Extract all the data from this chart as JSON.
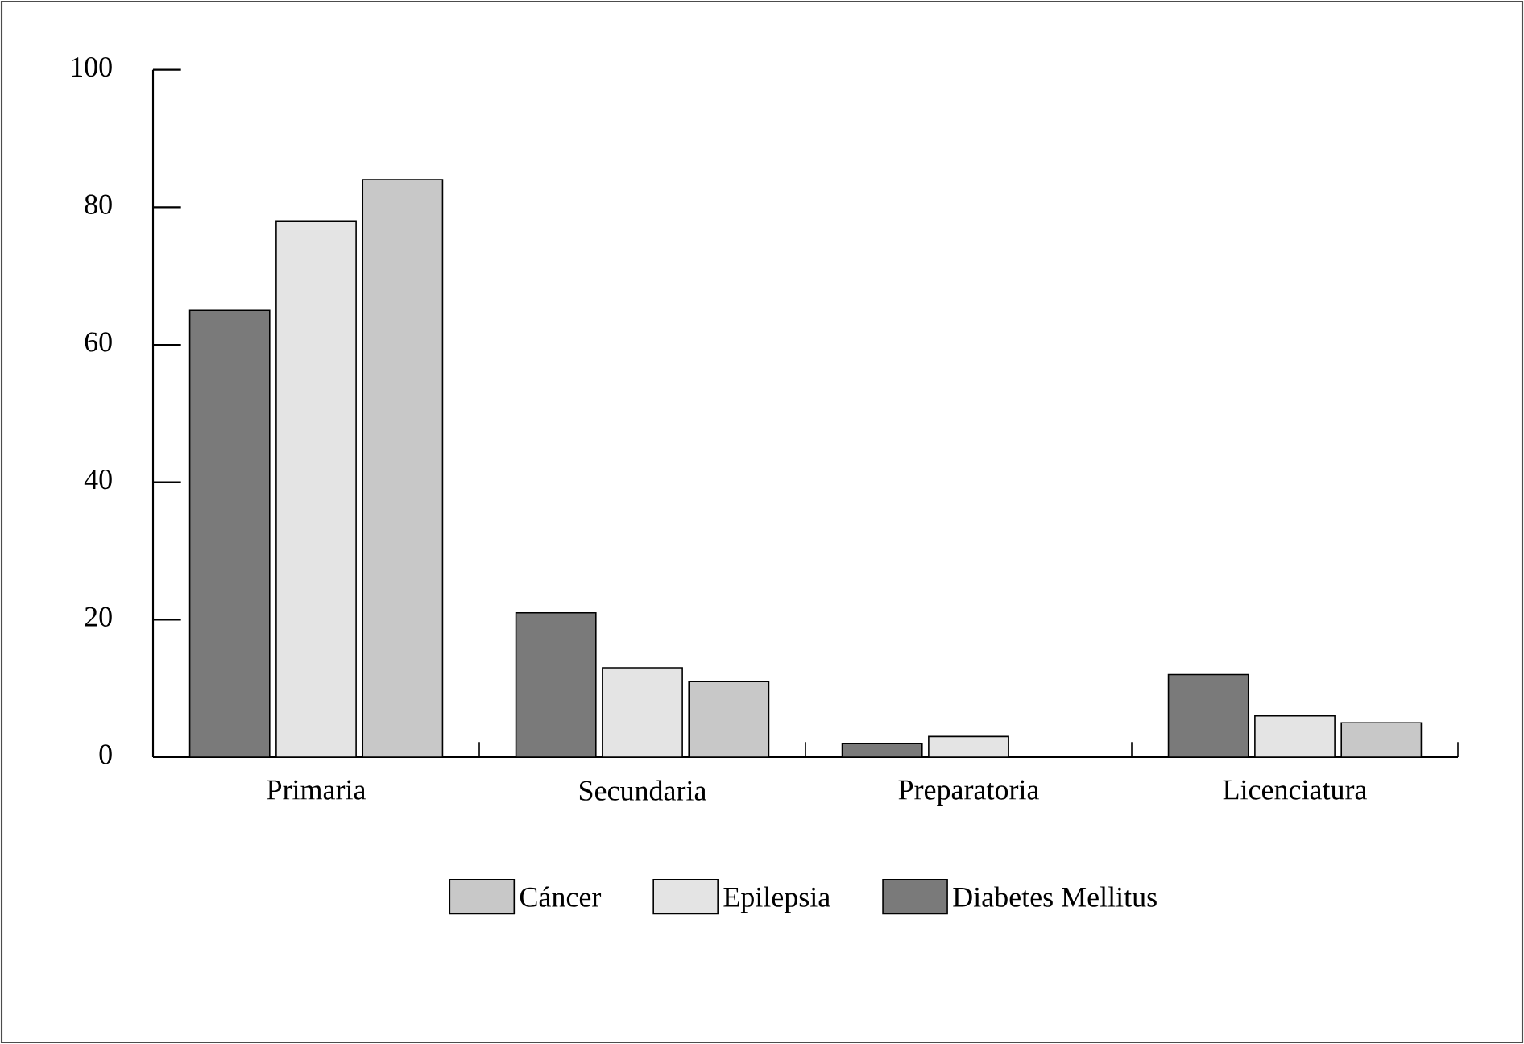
{
  "chart_data": {
    "type": "bar",
    "categories": [
      "Primaria",
      "Secundaria",
      "Preparatoria",
      "Licenciatura"
    ],
    "series": [
      {
        "name": "Cáncer",
        "color": "#c8c8c8",
        "values": [
          84,
          11,
          null,
          5
        ]
      },
      {
        "name": "Epilepsia",
        "color": "#e4e4e4",
        "values": [
          78,
          13,
          3,
          6
        ]
      },
      {
        "name": "Diabetes Mellitus",
        "color": "#7a7a7a",
        "values": [
          65,
          21,
          2,
          12
        ]
      }
    ],
    "ylim": [
      0,
      100
    ],
    "yticks": [
      0,
      20,
      40,
      60,
      80,
      100
    ],
    "grid": false,
    "legend": "bottom"
  }
}
